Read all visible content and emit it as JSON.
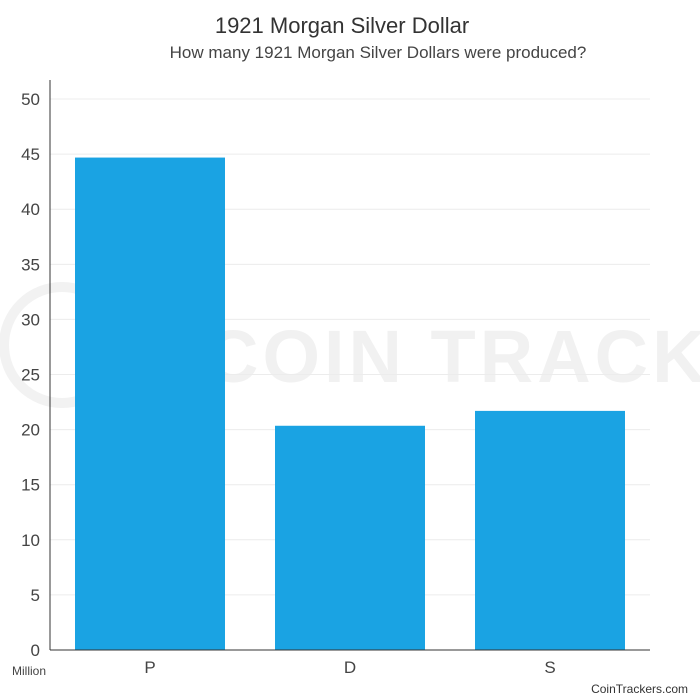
{
  "chart_data": {
    "type": "bar",
    "title": "1921 Morgan Silver Dollar",
    "subtitle": "How many 1921 Morgan Silver Dollars were produced?",
    "categories": [
      "P",
      "D",
      "S"
    ],
    "values": [
      44.69,
      20.35,
      21.7
    ],
    "ylim": [
      0,
      53
    ],
    "yticks": [
      0,
      5,
      10,
      15,
      20,
      25,
      30,
      35,
      40,
      45,
      50
    ],
    "yunit": "Million",
    "grid": true,
    "legend": "none",
    "bar_color": "#1aa3e3"
  },
  "watermark": "COIN TRACKERS",
  "source": "CoinTrackers.com"
}
